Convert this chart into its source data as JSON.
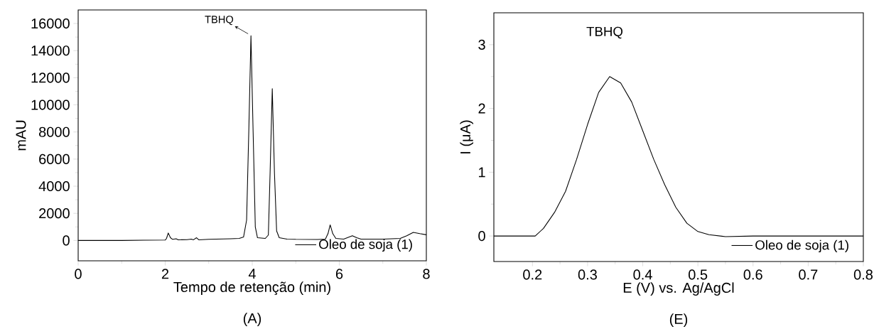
{
  "chart_data": [
    {
      "type": "line",
      "title": "(A)",
      "xlabel": "Tempo de retenção (min)",
      "ylabel": "mAU",
      "xlim": [
        0,
        8
      ],
      "ylim": [
        -1500,
        17000
      ],
      "xticks": [
        0,
        2,
        4,
        6,
        8
      ],
      "yticks": [
        0,
        2000,
        4000,
        6000,
        8000,
        10000,
        12000,
        14000,
        16000
      ],
      "legend": "bottom right",
      "annotations": [
        {
          "text": "TBHQ",
          "x": 3.97,
          "y": 15100
        }
      ],
      "series": [
        {
          "name": "Oleo de soja (1)",
          "color": "#000000",
          "x": [
            0,
            1,
            1.5,
            2.0,
            2.03,
            2.07,
            2.12,
            2.17,
            2.25,
            2.3,
            2.5,
            2.6,
            2.65,
            2.72,
            2.77,
            3.0,
            3.5,
            3.7,
            3.8,
            3.87,
            3.92,
            3.97,
            4.02,
            4.07,
            4.12,
            4.3,
            4.37,
            4.41,
            4.46,
            4.51,
            4.56,
            4.62,
            4.8,
            5.0,
            5.5,
            5.68,
            5.74,
            5.79,
            5.85,
            5.92,
            6.1,
            6.3,
            6.4,
            6.5,
            7.0,
            7.4,
            7.55,
            7.7,
            7.85,
            8.0
          ],
          "values": [
            0,
            0,
            20,
            30,
            150,
            550,
            200,
            80,
            120,
            50,
            60,
            100,
            50,
            200,
            50,
            80,
            120,
            150,
            250,
            1500,
            8000,
            15100,
            8000,
            1000,
            200,
            150,
            400,
            5000,
            11200,
            5000,
            700,
            200,
            100,
            80,
            70,
            100,
            500,
            1150,
            500,
            150,
            100,
            350,
            200,
            100,
            100,
            150,
            350,
            600,
            500,
            420
          ]
        }
      ]
    },
    {
      "type": "line",
      "title": "(E)",
      "xlabel": "E (V) vs. Ag/AgCl",
      "ylabel": "I (μA)",
      "xlim": [
        0.13,
        0.8
      ],
      "ylim": [
        -0.4,
        3.5
      ],
      "xticks": [
        0.2,
        0.3,
        0.4,
        0.5,
        0.6,
        0.7,
        0.8
      ],
      "yticks": [
        0,
        1,
        2,
        3
      ],
      "legend": "bottom right",
      "annotations": [
        "TBHQ"
      ],
      "series": [
        {
          "name": "Oleo de soja (1)",
          "color": "#000000",
          "x": [
            0.13,
            0.205,
            0.22,
            0.24,
            0.26,
            0.28,
            0.3,
            0.32,
            0.34,
            0.36,
            0.38,
            0.4,
            0.42,
            0.44,
            0.46,
            0.48,
            0.5,
            0.52,
            0.55,
            0.6,
            0.8
          ],
          "values": [
            0,
            0,
            0.12,
            0.37,
            0.7,
            1.2,
            1.75,
            2.25,
            2.5,
            2.4,
            2.1,
            1.65,
            1.2,
            0.8,
            0.45,
            0.2,
            0.07,
            0.02,
            -0.01,
            0,
            0
          ]
        }
      ]
    }
  ]
}
